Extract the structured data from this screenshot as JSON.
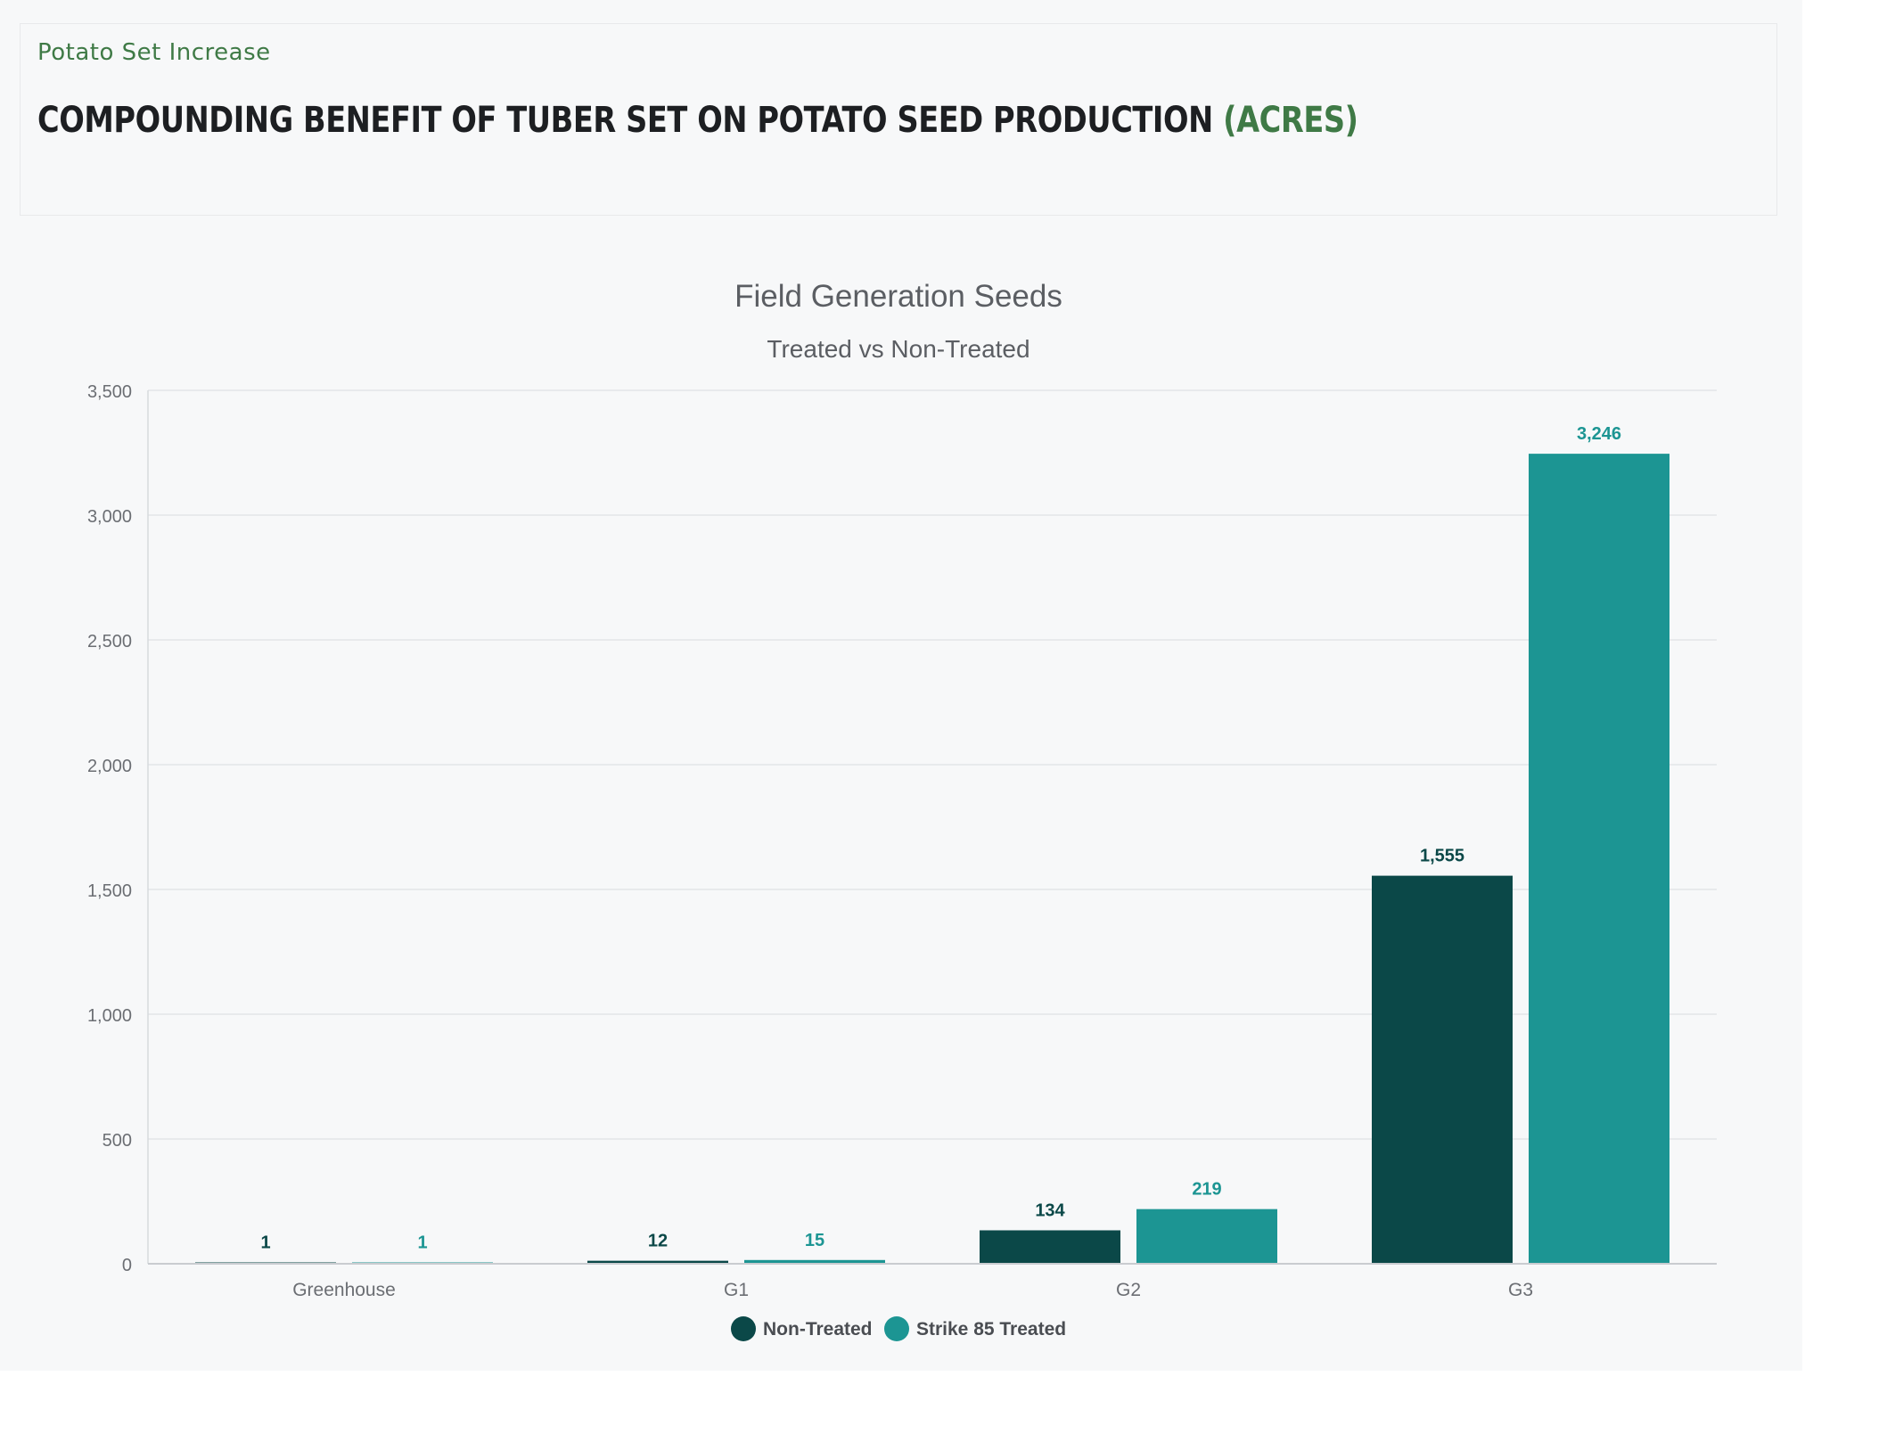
{
  "header": {
    "eyebrow": "Potato Set Increase",
    "title_main": "COMPOUNDING BENEFIT OF TUBER SET ON POTATO SEED PRODUCTION",
    "title_accent": "(ACRES)"
  },
  "colors": {
    "non_treated": "#0b4848",
    "treated": "#1c9593",
    "accent_green": "#3f7a46"
  },
  "chart_data": {
    "type": "bar",
    "title": "Field Generation Seeds",
    "subtitle": "Treated vs Non-Treated",
    "xlabel": "",
    "ylabel": "",
    "categories": [
      "Greenhouse",
      "G1",
      "G2",
      "G3"
    ],
    "series": [
      {
        "name": "Non-Treated",
        "values": [
          1,
          12,
          134,
          1555
        ],
        "labels": [
          "1",
          "12",
          "134",
          "1,555"
        ],
        "color": "#0b4848"
      },
      {
        "name": "Strike 85 Treated",
        "values": [
          1,
          15,
          219,
          3246
        ],
        "labels": [
          "1",
          "15",
          "219",
          "3,246"
        ],
        "color": "#1c9593"
      }
    ],
    "ylim": [
      0,
      3500
    ],
    "yticks": [
      0,
      500,
      1000,
      1500,
      2000,
      2500,
      3000,
      3500
    ],
    "ytick_labels": [
      "0",
      "500",
      "1,000",
      "1,500",
      "2,000",
      "2,500",
      "3,000",
      "3,500"
    ],
    "grid": true,
    "legend_position": "bottom-center"
  }
}
